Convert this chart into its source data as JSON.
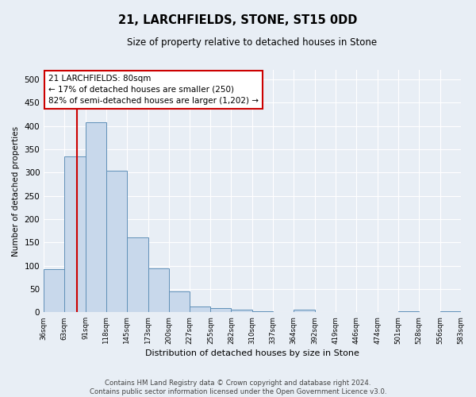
{
  "title": "21, LARCHFIELDS, STONE, ST15 0DD",
  "subtitle": "Size of property relative to detached houses in Stone",
  "xlabel": "Distribution of detached houses by size in Stone",
  "ylabel": "Number of detached properties",
  "bar_color": "#c8d8eb",
  "bar_edge_color": "#6090b8",
  "background_color": "#e8eef5",
  "annotation_text": "21 LARCHFIELDS: 80sqm\n← 17% of detached houses are smaller (250)\n82% of semi-detached houses are larger (1,202) →",
  "annotation_box_color": "#ffffff",
  "annotation_edge_color": "#cc0000",
  "vline_color": "#cc0000",
  "footer_line1": "Contains HM Land Registry data © Crown copyright and database right 2024.",
  "footer_line2": "Contains public sector information licensed under the Open Government Licence v3.0.",
  "bin_edges": [
    36,
    63,
    91,
    118,
    145,
    173,
    200,
    227,
    255,
    282,
    310,
    337,
    364,
    392,
    419,
    446,
    474,
    501,
    528,
    556,
    583
  ],
  "bin_values": [
    93,
    335,
    407,
    303,
    160,
    95,
    44,
    13,
    9,
    5,
    2,
    1,
    6,
    1,
    1,
    1,
    0,
    2,
    0,
    3
  ],
  "ylim": [
    0,
    520
  ],
  "yticks": [
    0,
    50,
    100,
    150,
    200,
    250,
    300,
    350,
    400,
    450,
    500
  ],
  "grid_color": "#ffffff",
  "vline_x": 80
}
